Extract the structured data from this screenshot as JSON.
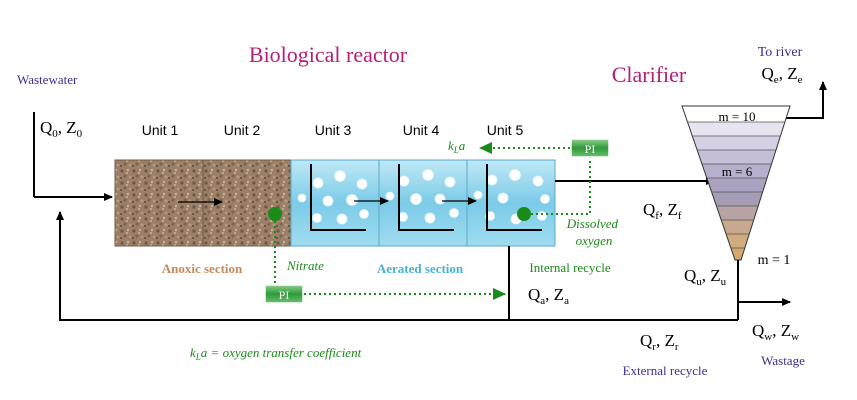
{
  "title_reactor": "Biological reactor",
  "title_clarifier": "Clarifier",
  "to_river": "To river",
  "effluent": {
    "main": "Q",
    "s1": "e",
    "mid": ", Z",
    "s2": "e"
  },
  "wastewater": "Wastewater",
  "inflow": {
    "main": "Q",
    "s1": "0",
    "mid": ", Z",
    "s2": "0"
  },
  "units": [
    "Unit 1",
    "Unit 2",
    "Unit 3",
    "Unit 4",
    "Unit 5"
  ],
  "kla_label": {
    "k": "k",
    "sub": "L",
    "a": "a"
  },
  "pi_label": "PI",
  "feed": {
    "main": "Q",
    "s1": "f",
    "mid": ", Z",
    "s2": "f"
  },
  "dissolved_oxygen": [
    "Dissolved",
    "oxygen"
  ],
  "nitrate": "Nitrate",
  "anoxic_section": "Anoxic section",
  "aerated_section": "Aerated section",
  "internal_recycle": "Internal recycle",
  "internal_flow": {
    "main": "Q",
    "s1": "a",
    "mid": ", Z",
    "s2": "a"
  },
  "layers": {
    "top": "m = 10",
    "mid": "m = 6",
    "bottom": "m = 1"
  },
  "underflow": {
    "main": "Q",
    "s1": "u",
    "mid": ", Z",
    "s2": "u"
  },
  "wastage_flow": {
    "main": "Q",
    "s1": "w",
    "mid": ", Z",
    "s2": "w"
  },
  "wastage": "Wastage",
  "recycle_flow": {
    "main": "Q",
    "s1": "r",
    "mid": ", Z",
    "s2": "r"
  },
  "external_recycle": "External recycle",
  "kla_definition": {
    "k": "k",
    "sub": "L",
    "rest": "a = oxygen transfer coefficient"
  },
  "colors": {
    "title": "#b5207a",
    "label_blue": "#3a2f8c",
    "green": "#1a8a1a",
    "anoxic": "#c8895a",
    "aerated": "#49b3d3"
  }
}
